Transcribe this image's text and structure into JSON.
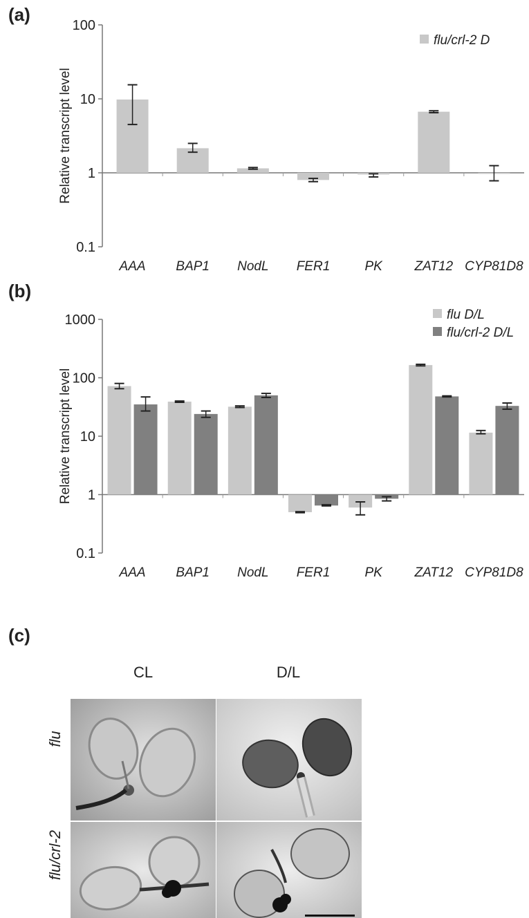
{
  "panels": {
    "a": "(a)",
    "b": "(b)",
    "c": "(c)"
  },
  "chart_data": [
    {
      "type": "bar",
      "scale": "log",
      "ylabel": "Relative transcript level",
      "ylim": [
        0.1,
        100
      ],
      "yticks": [
        "0.1",
        "1",
        "10",
        "100"
      ],
      "yticks_values": [
        0.1,
        1,
        10,
        100
      ],
      "baseline": 1,
      "legend_position": "top-right",
      "categories": [
        "AAA",
        "BAP1",
        "NodL",
        "FER1",
        "PK",
        "ZAT12",
        "CYP81D8"
      ],
      "series": [
        {
          "name": "flu/crl-2 D",
          "color": "#c8c8c8",
          "values": [
            9.8,
            2.15,
            1.15,
            0.8,
            0.95,
            6.7,
            0.98
          ],
          "err_low": [
            4.5,
            1.9,
            1.12,
            0.76,
            0.88,
            6.5,
            0.78
          ],
          "err_high": [
            15.5,
            2.5,
            1.18,
            0.84,
            0.97,
            6.9,
            1.25
          ]
        }
      ]
    },
    {
      "type": "bar",
      "scale": "log",
      "ylabel": "Relative transcript level",
      "ylim": [
        0.1,
        1000
      ],
      "yticks": [
        "0.1",
        "1",
        "10",
        "100",
        "1000"
      ],
      "yticks_values": [
        0.1,
        1,
        10,
        100,
        1000
      ],
      "baseline": 1,
      "legend_position": "top-right",
      "categories": [
        "AAA",
        "BAP1",
        "NodL",
        "FER1",
        "PK",
        "ZAT12",
        "CYP81D8"
      ],
      "series": [
        {
          "name": "flu D/L",
          "color": "#c8c8c8",
          "values": [
            72,
            39,
            32,
            0.5,
            0.6,
            165,
            11.5
          ],
          "err_low": [
            65,
            38,
            31,
            0.49,
            0.45,
            160,
            11
          ],
          "err_high": [
            80,
            40,
            33,
            0.51,
            0.75,
            170,
            12.5
          ]
        },
        {
          "name": "flu/crl-2 D/L",
          "color": "#808080",
          "values": [
            35,
            24,
            50,
            0.65,
            0.85,
            48,
            33
          ],
          "err_low": [
            27,
            21,
            46,
            0.64,
            0.78,
            47,
            29
          ],
          "err_high": [
            47,
            27,
            54,
            0.67,
            0.92,
            49,
            37
          ]
        }
      ]
    }
  ],
  "photos": {
    "col_labels": [
      "CL",
      "D/L"
    ],
    "row_labels": [
      "flu",
      "flu/crl-2"
    ]
  }
}
